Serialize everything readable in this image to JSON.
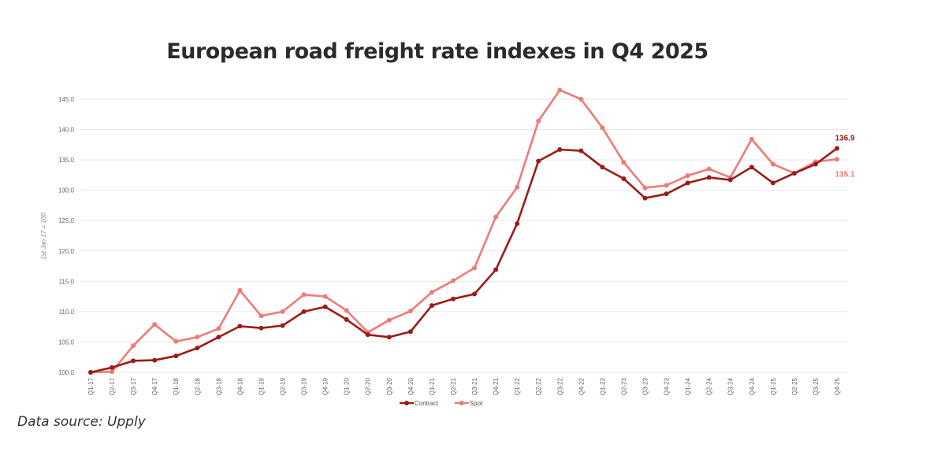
{
  "title": "European road freight rate indexes in Q4 2025",
  "source": "Data source: Upply",
  "colors": {
    "contract": "#9b1c17",
    "spot": "#ee7b78",
    "grid": "#e6e6e6"
  },
  "chart_data": {
    "type": "line",
    "title": "European road freight rate indexes in Q4 2025",
    "xlabel": "",
    "ylabel": "1st Jan 17 = 100",
    "ylim": [
      100,
      145
    ],
    "yticks": [
      100,
      105,
      110,
      115,
      120,
      125,
      130,
      135,
      140,
      145
    ],
    "ytick_labels": [
      "100.0",
      "105.0",
      "110.0",
      "115.0",
      "120.0",
      "125.0",
      "130.0",
      "135.0",
      "140.0",
      "145.0"
    ],
    "grid": true,
    "legend_position": "bottom",
    "categories": [
      "Q1-17",
      "Q2-17",
      "Q3-17",
      "Q4-17",
      "Q1-18",
      "Q2-18",
      "Q3-18",
      "Q4-18",
      "Q1-19",
      "Q2-19",
      "Q3-19",
      "Q4-19",
      "Q1-20",
      "Q2-20",
      "Q3-20",
      "Q4-20",
      "Q1-21",
      "Q2-21",
      "Q3-21",
      "Q4-21",
      "Q1-22",
      "Q2-22",
      "Q3-22",
      "Q4-22",
      "Q1-23",
      "Q2-23",
      "Q3-23",
      "Q4-23",
      "Q1-24",
      "Q2-24",
      "Q3-24",
      "Q4-24",
      "Q1-25",
      "Q2-25",
      "Q3-25",
      "Q4-25"
    ],
    "series": [
      {
        "name": "Contract",
        "color": "#9b1c17",
        "end_label": "136.9",
        "values": [
          100.0,
          100.8,
          101.9,
          102.0,
          102.7,
          104.0,
          105.8,
          107.6,
          107.3,
          107.7,
          110.0,
          110.8,
          108.7,
          106.2,
          105.8,
          106.7,
          111.0,
          112.1,
          112.9,
          116.9,
          124.5,
          134.8,
          136.7,
          136.5,
          133.8,
          131.9,
          128.7,
          129.4,
          131.2,
          132.1,
          131.7,
          133.8,
          131.2,
          132.8,
          134.3,
          136.9
        ]
      },
      {
        "name": "Spot",
        "color": "#ee7b78",
        "end_label": "135.1",
        "values": [
          100.0,
          100.1,
          104.4,
          107.9,
          105.1,
          105.8,
          107.2,
          113.5,
          109.3,
          110.0,
          112.8,
          112.5,
          110.2,
          106.6,
          108.6,
          110.1,
          113.2,
          115.1,
          117.2,
          125.6,
          130.5,
          141.4,
          146.5,
          145.0,
          140.3,
          134.6,
          130.4,
          130.8,
          132.4,
          133.5,
          132.1,
          138.4,
          134.3,
          132.8,
          134.7,
          135.1
        ]
      }
    ]
  }
}
